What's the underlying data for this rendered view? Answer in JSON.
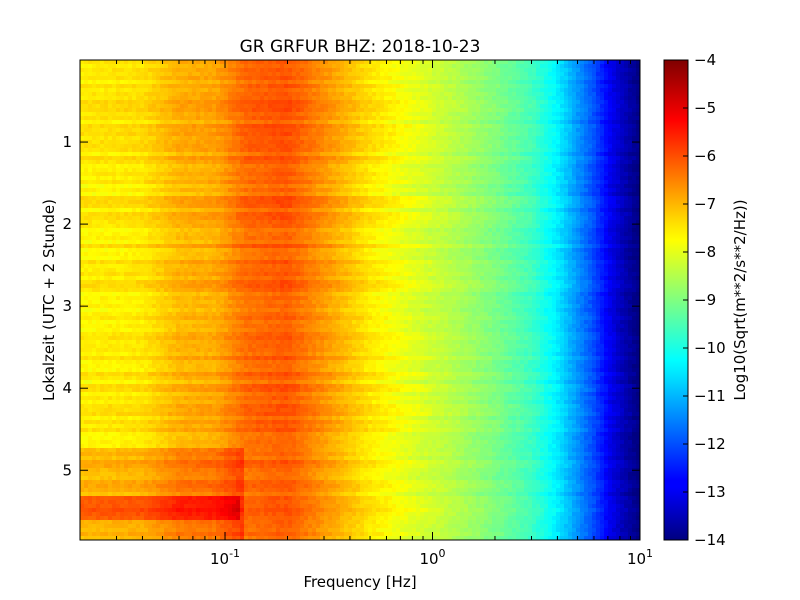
{
  "chart_data": {
    "type": "heatmap",
    "title": "GR GRFUR BHZ: 2018-10-23",
    "xlabel": "Frequency [Hz]",
    "ylabel": "Lokalzeit (UTC + 2 Stunde)",
    "x_scale": "log",
    "xlim": [
      0.02,
      10
    ],
    "ylim": [
      5.85,
      0
    ],
    "x_ticks": [
      {
        "value": 0.1,
        "base": "10",
        "exp": "-1"
      },
      {
        "value": 1,
        "base": "10",
        "exp": "0"
      },
      {
        "value": 10,
        "base": "10",
        "exp": "1"
      }
    ],
    "y_ticks": [
      {
        "value": 1,
        "label": "1"
      },
      {
        "value": 2,
        "label": "2"
      },
      {
        "value": 3,
        "label": "3"
      },
      {
        "value": 4,
        "label": "4"
      },
      {
        "value": 5,
        "label": "5"
      }
    ],
    "colorbar": {
      "label": "Log10(Sqrt(m**2/s**2/Hz))",
      "range": [
        -14,
        -4
      ],
      "ticks": [
        {
          "value": -4,
          "label": "−4"
        },
        {
          "value": -5,
          "label": "−5"
        },
        {
          "value": -6,
          "label": "−6"
        },
        {
          "value": -7,
          "label": "−7"
        },
        {
          "value": -8,
          "label": "−8"
        },
        {
          "value": -9,
          "label": "−9"
        },
        {
          "value": -10,
          "label": "−10"
        },
        {
          "value": -11,
          "label": "−11"
        },
        {
          "value": -12,
          "label": "−12"
        },
        {
          "value": -13,
          "label": "−13"
        },
        {
          "value": -14,
          "label": "−14"
        }
      ]
    },
    "spectrum_profile": {
      "frequency_hz": [
        0.02,
        0.04,
        0.06,
        0.09,
        0.125,
        0.2,
        0.3,
        0.5,
        0.8,
        1.2,
        2.0,
        3.0,
        4.0,
        5.0,
        6.0,
        7.0,
        8.0,
        9.0,
        10.0
      ],
      "log10_amplitude": [
        -7.6,
        -7.5,
        -7.0,
        -6.9,
        -6.3,
        -6.1,
        -6.7,
        -7.5,
        -8.0,
        -8.4,
        -9.0,
        -9.6,
        -10.4,
        -11.3,
        -12.0,
        -12.8,
        -13.3,
        -13.7,
        -14.0
      ]
    },
    "time_events": [
      {
        "start_h": 4.75,
        "end_h": 5.85,
        "freq_max_hz": 0.125,
        "offset": 0.6
      },
      {
        "start_h": 5.3,
        "end_h": 5.6,
        "freq_max_hz": 0.12,
        "offset": 0.8
      }
    ]
  }
}
